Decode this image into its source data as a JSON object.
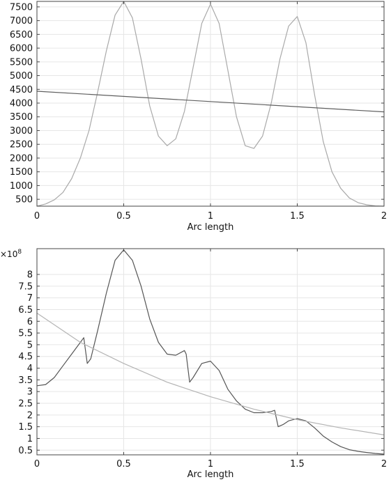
{
  "chart_data": [
    {
      "type": "line",
      "xlabel": "Arc length",
      "ylabel": "",
      "xlim": [
        0,
        2
      ],
      "ylim": [
        250,
        7700
      ],
      "grid": true,
      "xticks": [
        0,
        0.5,
        1,
        1.5,
        2
      ],
      "xtick_labels": [
        "0",
        "0.5",
        "1",
        "1.5",
        "2"
      ],
      "yticks": [
        500,
        1000,
        1500,
        2000,
        2500,
        3000,
        3500,
        4000,
        4500,
        5000,
        5500,
        6000,
        6500,
        7000,
        7500
      ],
      "ytick_labels": [
        "500",
        "1000",
        "1500",
        "2000",
        "2500",
        "3000",
        "3500",
        "4000",
        "4500",
        "5000",
        "5500",
        "6000",
        "6500",
        "7000",
        "7500"
      ],
      "series": [
        {
          "color": "#a9a9a9",
          "x": [
            0,
            0.05,
            0.1,
            0.15,
            0.2,
            0.25,
            0.3,
            0.35,
            0.4,
            0.45,
            0.5,
            0.55,
            0.6,
            0.65,
            0.7,
            0.75,
            0.8,
            0.85,
            0.9,
            0.95,
            1.0,
            1.05,
            1.1,
            1.15,
            1.2,
            1.25,
            1.3,
            1.35,
            1.4,
            1.45,
            1.5,
            1.55,
            1.6,
            1.65,
            1.7,
            1.75,
            1.8,
            1.85,
            1.9,
            1.95,
            2.0
          ],
          "y": [
            250,
            330,
            480,
            750,
            1250,
            2000,
            3000,
            4400,
            5900,
            7200,
            7700,
            7100,
            5600,
            3900,
            2800,
            2450,
            2700,
            3700,
            5300,
            6900,
            7600,
            6900,
            5200,
            3500,
            2450,
            2350,
            2800,
            4000,
            5600,
            6800,
            7150,
            6200,
            4300,
            2600,
            1500,
            900,
            550,
            380,
            300,
            260,
            250
          ]
        },
        {
          "color": "#5e5e5e",
          "x": [
            0,
            2
          ],
          "y": [
            4430,
            3680
          ]
        }
      ]
    },
    {
      "type": "line",
      "xlabel": "Arc length",
      "ylabel": "",
      "scale_label": "×10^8",
      "scale_base": "×10",
      "scale_exp": "8",
      "xlim": [
        0,
        2
      ],
      "ylim": [
        0.3,
        9.1
      ],
      "grid": true,
      "xticks": [
        0,
        0.5,
        1,
        1.5,
        2
      ],
      "xtick_labels": [
        "0",
        "0.5",
        "1",
        "1.5",
        "2"
      ],
      "yticks": [
        0.5,
        1,
        1.5,
        2,
        2.5,
        3,
        3.5,
        4,
        4.5,
        5,
        5.5,
        6,
        6.5,
        7,
        7.5,
        8
      ],
      "ytick_labels": [
        "0.5",
        "1",
        "1.5",
        "2",
        "2.5",
        "3",
        "3.5",
        "4",
        "4.5",
        "5",
        "5.5",
        "6",
        "6.5",
        "7",
        "7.5",
        "8"
      ],
      "series": [
        {
          "color": "#555555",
          "x": [
            0,
            0.05,
            0.1,
            0.15,
            0.2,
            0.25,
            0.27,
            0.29,
            0.31,
            0.35,
            0.4,
            0.45,
            0.5,
            0.55,
            0.6,
            0.65,
            0.7,
            0.75,
            0.8,
            0.85,
            0.86,
            0.88,
            0.9,
            0.95,
            1.0,
            1.05,
            1.1,
            1.15,
            1.2,
            1.25,
            1.3,
            1.35,
            1.37,
            1.39,
            1.42,
            1.45,
            1.5,
            1.55,
            1.6,
            1.65,
            1.7,
            1.75,
            1.8,
            1.85,
            1.9,
            1.95,
            2.0
          ],
          "y": [
            3.25,
            3.3,
            3.6,
            4.1,
            4.6,
            5.1,
            5.3,
            4.2,
            4.4,
            5.6,
            7.2,
            8.6,
            9.05,
            8.6,
            7.5,
            6.1,
            5.1,
            4.6,
            4.55,
            4.75,
            4.6,
            3.4,
            3.6,
            4.2,
            4.3,
            3.9,
            3.1,
            2.6,
            2.25,
            2.1,
            2.1,
            2.15,
            2.2,
            1.5,
            1.6,
            1.75,
            1.85,
            1.75,
            1.45,
            1.1,
            0.85,
            0.65,
            0.52,
            0.45,
            0.4,
            0.36,
            0.33
          ]
        },
        {
          "color": "#b4b4b4",
          "x": [
            0,
            0.25,
            0.5,
            0.75,
            1.0,
            1.25,
            1.5,
            1.75,
            2.0
          ],
          "y": [
            6.35,
            5.1,
            4.2,
            3.4,
            2.78,
            2.25,
            1.8,
            1.45,
            1.15
          ]
        }
      ]
    }
  ]
}
